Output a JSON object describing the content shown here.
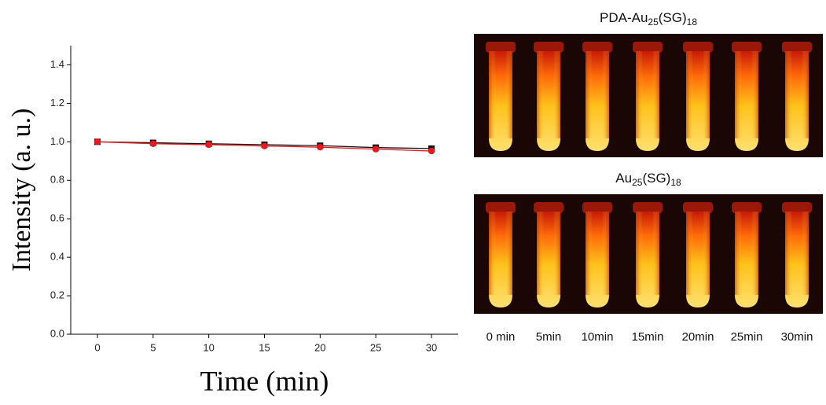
{
  "chart_data": {
    "type": "line",
    "x_label": "Time (min)",
    "y_label": "Intensity (a. u.)",
    "x": [
      0,
      5,
      10,
      15,
      20,
      25,
      30
    ],
    "xlim": [
      -2.4,
      32.4
    ],
    "xticks": [
      0,
      5,
      10,
      15,
      20,
      25,
      30
    ],
    "ylim": [
      0,
      1.5
    ],
    "yticks": [
      {
        "value": 0,
        "label": "0.0"
      },
      {
        "value": 0.2,
        "label": "0.2"
      },
      {
        "value": 0.4,
        "label": "0.4"
      },
      {
        "value": 0.6,
        "label": "0.6"
      },
      {
        "value": 0.8,
        "label": "0.8"
      },
      {
        "value": 1,
        "label": "1.0"
      },
      {
        "value": 1.2,
        "label": "1.2"
      },
      {
        "value": 1.4,
        "label": "1.4"
      }
    ],
    "grid": false,
    "series": [
      {
        "marker": "square",
        "color": "#111111",
        "values": [
          1.0,
          0.995,
          0.99,
          0.985,
          0.98,
          0.97,
          0.965
        ]
      },
      {
        "marker": "circle",
        "color": "#e8191e",
        "values": [
          1.0,
          0.99,
          0.985,
          0.978,
          0.972,
          0.962,
          0.952
        ]
      }
    ]
  },
  "photos": {
    "panels": [
      {
        "title": [
          "PDA-Au",
          "25",
          "(SG)",
          "18"
        ]
      },
      {
        "title": [
          "Au",
          "25",
          "(SG)",
          "18"
        ]
      }
    ],
    "times": [
      "0 min",
      "5min",
      "10min",
      "15min",
      "20min",
      "25min",
      "30min"
    ]
  }
}
